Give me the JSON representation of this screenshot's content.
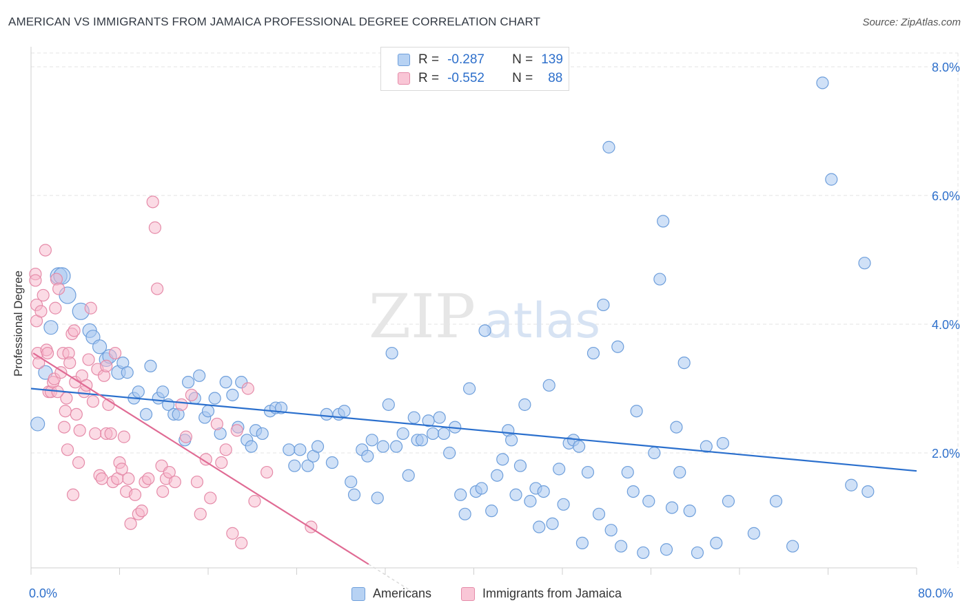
{
  "title": "AMERICAN VS IMMIGRANTS FROM JAMAICA PROFESSIONAL DEGREE CORRELATION CHART",
  "source": "Source: ZipAtlas.com",
  "watermark": {
    "zip": "ZIP",
    "atlas": "atlas"
  },
  "colors": {
    "americans_fill": "#aac8f0",
    "americans_stroke": "#6d9edb",
    "americans_line": "#2a6fcd",
    "jamaica_fill": "#f7b8cc",
    "jamaica_stroke": "#e58aa8",
    "jamaica_line": "#e06b94",
    "axis_text": "#2d6fcb",
    "grid": "#e3e3e3"
  },
  "legend": {
    "americans": {
      "r_label": "R =",
      "r_value": "-0.287",
      "n_label": "N =",
      "n_value": "139"
    },
    "jamaica": {
      "r_label": "R =",
      "r_value": "-0.552",
      "n_label": "N =",
      "n_value": "88"
    }
  },
  "chart_data": {
    "type": "scatter",
    "title": "AMERICAN VS IMMIGRANTS FROM JAMAICA PROFESSIONAL DEGREE CORRELATION CHART",
    "xlabel": "",
    "ylabel": "Professional Degree",
    "xlim": [
      0,
      80
    ],
    "ylim": [
      0,
      8.0
    ],
    "x_tick_labels": [
      "0.0%",
      "80.0%"
    ],
    "y_ticks": [
      2.0,
      4.0,
      6.0,
      8.0
    ],
    "y_tick_labels": [
      "2.0%",
      "4.0%",
      "6.0%",
      "8.0%"
    ],
    "legend_entries": [
      "Americans",
      "Immigrants from Jamaica"
    ],
    "series": [
      {
        "name": "Americans",
        "trend": {
          "x": [
            0,
            80
          ],
          "y": [
            3.0,
            1.72
          ]
        },
        "points": [
          [
            0.6,
            2.45
          ],
          [
            1.3,
            3.25
          ],
          [
            1.8,
            3.95
          ],
          [
            2.5,
            4.75
          ],
          [
            2.8,
            4.75
          ],
          [
            3.3,
            4.45
          ],
          [
            4.5,
            4.2
          ],
          [
            5.3,
            3.9
          ],
          [
            5.6,
            3.8
          ],
          [
            6.2,
            3.65
          ],
          [
            6.8,
            3.45
          ],
          [
            7.1,
            3.5
          ],
          [
            7.9,
            3.25
          ],
          [
            8.3,
            3.4
          ],
          [
            8.7,
            3.25
          ],
          [
            9.3,
            2.85
          ],
          [
            9.7,
            2.95
          ],
          [
            10.4,
            2.6
          ],
          [
            10.8,
            3.35
          ],
          [
            11.5,
            2.85
          ],
          [
            11.9,
            2.95
          ],
          [
            12.4,
            2.75
          ],
          [
            12.9,
            2.6
          ],
          [
            13.3,
            2.6
          ],
          [
            13.9,
            2.2
          ],
          [
            14.2,
            3.1
          ],
          [
            14.8,
            2.85
          ],
          [
            15.2,
            3.2
          ],
          [
            15.7,
            2.55
          ],
          [
            16.0,
            2.65
          ],
          [
            16.6,
            2.85
          ],
          [
            17.1,
            2.3
          ],
          [
            17.6,
            3.1
          ],
          [
            18.2,
            2.9
          ],
          [
            18.7,
            2.4
          ],
          [
            19.0,
            3.1
          ],
          [
            19.5,
            2.2
          ],
          [
            19.9,
            2.1
          ],
          [
            20.3,
            2.35
          ],
          [
            20.9,
            2.3
          ],
          [
            21.6,
            2.65
          ],
          [
            22.1,
            2.7
          ],
          [
            22.6,
            2.7
          ],
          [
            23.3,
            2.05
          ],
          [
            23.8,
            1.8
          ],
          [
            24.3,
            2.05
          ],
          [
            25.0,
            1.8
          ],
          [
            25.5,
            1.95
          ],
          [
            25.9,
            2.1
          ],
          [
            26.7,
            2.6
          ],
          [
            27.2,
            1.85
          ],
          [
            27.8,
            2.6
          ],
          [
            28.3,
            2.65
          ],
          [
            28.9,
            1.55
          ],
          [
            29.2,
            1.35
          ],
          [
            29.9,
            2.05
          ],
          [
            30.4,
            1.95
          ],
          [
            30.8,
            2.2
          ],
          [
            31.3,
            1.3
          ],
          [
            31.8,
            2.1
          ],
          [
            32.3,
            2.75
          ],
          [
            32.6,
            3.55
          ],
          [
            33.0,
            2.1
          ],
          [
            33.6,
            2.3
          ],
          [
            34.1,
            1.65
          ],
          [
            34.6,
            2.55
          ],
          [
            34.9,
            2.2
          ],
          [
            35.3,
            2.2
          ],
          [
            35.9,
            2.5
          ],
          [
            36.3,
            2.3
          ],
          [
            36.9,
            2.55
          ],
          [
            37.3,
            2.3
          ],
          [
            37.8,
            2.0
          ],
          [
            38.3,
            2.4
          ],
          [
            38.8,
            1.35
          ],
          [
            39.2,
            1.05
          ],
          [
            39.6,
            3.0
          ],
          [
            40.2,
            1.4
          ],
          [
            40.7,
            1.45
          ],
          [
            41.0,
            3.9
          ],
          [
            41.6,
            1.1
          ],
          [
            42.1,
            1.65
          ],
          [
            42.6,
            1.9
          ],
          [
            43.1,
            2.35
          ],
          [
            43.4,
            2.2
          ],
          [
            43.8,
            1.35
          ],
          [
            44.2,
            1.8
          ],
          [
            44.6,
            2.75
          ],
          [
            45.1,
            1.25
          ],
          [
            45.6,
            1.45
          ],
          [
            45.9,
            0.85
          ],
          [
            46.3,
            1.4
          ],
          [
            46.8,
            3.05
          ],
          [
            47.1,
            0.9
          ],
          [
            47.7,
            1.75
          ],
          [
            48.1,
            1.2
          ],
          [
            48.6,
            2.15
          ],
          [
            49.0,
            2.2
          ],
          [
            49.5,
            2.1
          ],
          [
            49.8,
            0.6
          ],
          [
            50.3,
            1.7
          ],
          [
            50.8,
            3.55
          ],
          [
            51.3,
            1.05
          ],
          [
            51.7,
            4.3
          ],
          [
            52.2,
            6.75
          ],
          [
            52.4,
            0.8
          ],
          [
            53.0,
            3.65
          ],
          [
            53.3,
            0.55
          ],
          [
            53.9,
            1.7
          ],
          [
            54.4,
            1.4
          ],
          [
            54.7,
            2.65
          ],
          [
            55.3,
            0.45
          ],
          [
            55.8,
            1.25
          ],
          [
            56.3,
            2.0
          ],
          [
            56.8,
            4.7
          ],
          [
            57.1,
            5.6
          ],
          [
            57.4,
            0.5
          ],
          [
            57.9,
            1.15
          ],
          [
            58.3,
            2.4
          ],
          [
            58.6,
            1.7
          ],
          [
            59.0,
            3.4
          ],
          [
            59.5,
            1.1
          ],
          [
            60.2,
            0.45
          ],
          [
            61.0,
            2.1
          ],
          [
            61.9,
            0.6
          ],
          [
            62.5,
            2.15
          ],
          [
            63.0,
            1.25
          ],
          [
            65.3,
            0.75
          ],
          [
            67.3,
            1.25
          ],
          [
            68.8,
            0.55
          ],
          [
            71.5,
            7.75
          ],
          [
            72.3,
            6.25
          ],
          [
            74.1,
            1.5
          ],
          [
            75.3,
            4.95
          ],
          [
            75.6,
            1.4
          ]
        ]
      },
      {
        "name": "Immigrants from Jamaica",
        "trend": {
          "x": [
            0.2,
            30.5
          ],
          "y": [
            3.55,
            0.27
          ]
        },
        "points": [
          [
            0.4,
            4.78
          ],
          [
            0.4,
            4.68
          ],
          [
            0.5,
            4.3
          ],
          [
            0.5,
            4.05
          ],
          [
            0.6,
            3.55
          ],
          [
            0.7,
            3.4
          ],
          [
            0.9,
            4.2
          ],
          [
            1.1,
            4.45
          ],
          [
            1.3,
            5.15
          ],
          [
            1.4,
            3.6
          ],
          [
            1.5,
            3.55
          ],
          [
            1.6,
            2.95
          ],
          [
            1.8,
            2.95
          ],
          [
            2.0,
            3.1
          ],
          [
            2.1,
            3.15
          ],
          [
            2.2,
            4.25
          ],
          [
            2.3,
            4.7
          ],
          [
            2.5,
            4.55
          ],
          [
            2.7,
            3.25
          ],
          [
            2.9,
            3.55
          ],
          [
            3.0,
            2.4
          ],
          [
            3.1,
            2.65
          ],
          [
            3.2,
            2.85
          ],
          [
            3.3,
            2.05
          ],
          [
            3.4,
            3.55
          ],
          [
            3.5,
            3.4
          ],
          [
            3.7,
            3.85
          ],
          [
            3.9,
            3.9
          ],
          [
            4.0,
            3.1
          ],
          [
            4.1,
            2.6
          ],
          [
            4.3,
            1.85
          ],
          [
            4.4,
            2.35
          ],
          [
            4.6,
            3.2
          ],
          [
            4.8,
            2.95
          ],
          [
            5.0,
            3.05
          ],
          [
            5.2,
            3.45
          ],
          [
            5.4,
            4.25
          ],
          [
            5.6,
            2.8
          ],
          [
            5.8,
            2.3
          ],
          [
            6.0,
            3.3
          ],
          [
            6.2,
            1.65
          ],
          [
            6.4,
            1.6
          ],
          [
            6.6,
            3.2
          ],
          [
            6.8,
            2.3
          ],
          [
            7.0,
            2.75
          ],
          [
            7.2,
            2.3
          ],
          [
            7.4,
            1.55
          ],
          [
            7.6,
            3.55
          ],
          [
            7.8,
            1.6
          ],
          [
            8.0,
            1.85
          ],
          [
            8.2,
            1.75
          ],
          [
            8.4,
            2.25
          ],
          [
            8.6,
            1.4
          ],
          [
            8.8,
            1.6
          ],
          [
            9.0,
            0.9
          ],
          [
            9.4,
            1.35
          ],
          [
            9.7,
            1.05
          ],
          [
            10.0,
            1.1
          ],
          [
            10.3,
            1.55
          ],
          [
            10.6,
            1.6
          ],
          [
            11.0,
            5.9
          ],
          [
            11.2,
            5.5
          ],
          [
            11.4,
            4.55
          ],
          [
            11.8,
            1.8
          ],
          [
            12.2,
            1.6
          ],
          [
            12.5,
            1.7
          ],
          [
            13.0,
            1.55
          ],
          [
            13.6,
            2.75
          ],
          [
            14.0,
            2.25
          ],
          [
            14.5,
            2.9
          ],
          [
            15.0,
            1.55
          ],
          [
            15.3,
            1.05
          ],
          [
            15.8,
            1.9
          ],
          [
            16.2,
            1.3
          ],
          [
            16.8,
            2.45
          ],
          [
            17.2,
            1.85
          ],
          [
            17.6,
            2.05
          ],
          [
            18.2,
            0.75
          ],
          [
            18.6,
            2.35
          ],
          [
            19.0,
            0.6
          ],
          [
            19.6,
            3.0
          ],
          [
            20.2,
            1.25
          ],
          [
            21.3,
            1.7
          ],
          [
            25.3,
            0.85
          ],
          [
            6.8,
            3.35
          ],
          [
            3.8,
            1.35
          ],
          [
            2.4,
            2.95
          ],
          [
            11.9,
            1.4
          ]
        ]
      }
    ]
  },
  "x_axis": {
    "min_label": "0.0%",
    "max_label": "80.0%"
  },
  "y_axis_label": "Professional Degree",
  "bottom_legend": {
    "americans": "Americans",
    "jamaica": "Immigrants from Jamaica"
  }
}
